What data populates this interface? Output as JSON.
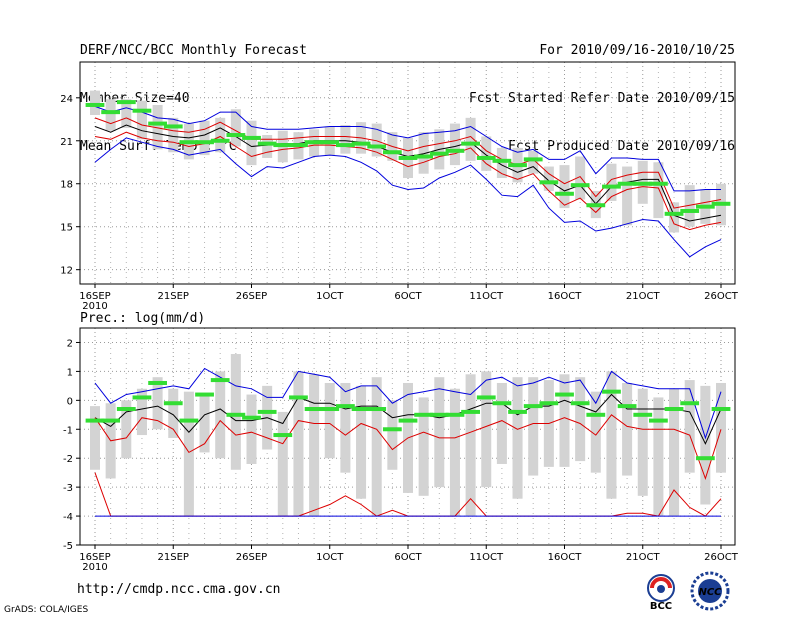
{
  "header": {
    "left": [
      "DERF/NCC/BCC Monthly Forecast",
      "Member Size=40",
      "Mean Surf. Temp.: °C"
    ],
    "right": [
      "For 2010/09/16-2010/10/25",
      "Fcst Started Refer Date 2010/09/15",
      "Fcst Produced Date 2010/09/16"
    ]
  },
  "precip_label": "Prec.: log(mm/d)",
  "footer": {
    "url": "http://cmdp.ncc.cma.gov.cn",
    "grads": "GrADS: COLA/IGES"
  },
  "logos": {
    "bcc": "BCC",
    "ncc": "NCC"
  },
  "colors": {
    "box": "#d3d3d3",
    "median": "#33dd33",
    "mean": "#000000",
    "spread": "#dd0000",
    "envelope": "#0000dd"
  },
  "chart_data": [
    {
      "type": "line",
      "title": "Mean Surf. Temp.: °C",
      "x_range": [
        0,
        40
      ],
      "ylim": [
        11,
        26.5
      ],
      "yticks": [
        12,
        15,
        18,
        21,
        24
      ],
      "xticks": [
        {
          "x": 0,
          "label": "16SEP",
          "sub": "2010"
        },
        {
          "x": 5,
          "label": "21SEP"
        },
        {
          "x": 10,
          "label": "26SEP"
        },
        {
          "x": 15,
          "label": "1OCT"
        },
        {
          "x": 20,
          "label": "6OCT"
        },
        {
          "x": 25,
          "label": "11OCT"
        },
        {
          "x": 30,
          "label": "16OCT"
        },
        {
          "x": 35,
          "label": "21OCT"
        },
        {
          "x": 40,
          "label": "26OCT"
        }
      ],
      "box_low": [
        22.8,
        21.7,
        21.9,
        21.1,
        20.4,
        20.2,
        19.7,
        20.0,
        20.2,
        20.6,
        19.3,
        19.8,
        19.5,
        19.7,
        19.9,
        20.0,
        20.1,
        20.1,
        19.9,
        19.6,
        18.4,
        18.7,
        19.0,
        19.3,
        19.6,
        18.9,
        18.4,
        18.1,
        18.7,
        17.5,
        16.3,
        16.9,
        15.6,
        16.8,
        15.1,
        16.6,
        15.6,
        14.6,
        15.0,
        15.2,
        15.1
      ],
      "box_high": [
        24.5,
        23.9,
        23.9,
        23.8,
        23.5,
        22.6,
        22.2,
        22.4,
        22.6,
        23.2,
        22.4,
        21.4,
        21.7,
        21.6,
        21.8,
        22.0,
        22.1,
        22.3,
        22.2,
        21.6,
        21.2,
        21.6,
        21.8,
        22.2,
        22.6,
        21.3,
        20.5,
        20.5,
        20.3,
        19.2,
        19.3,
        19.9,
        17.5,
        19.4,
        19.2,
        19.6,
        19.5,
        16.7,
        17.9,
        17.6,
        18.0
      ],
      "median": [
        23.5,
        23.0,
        23.7,
        23.1,
        22.2,
        22.0,
        20.9,
        20.9,
        21.0,
        21.4,
        21.2,
        20.8,
        20.7,
        20.7,
        20.9,
        20.9,
        20.7,
        20.8,
        20.6,
        20.2,
        19.8,
        19.9,
        20.1,
        20.3,
        20.8,
        19.8,
        19.6,
        19.3,
        19.7,
        18.1,
        17.3,
        17.9,
        16.5,
        17.8,
        18.0,
        18.0,
        18.0,
        15.9,
        16.1,
        16.4,
        16.6
      ],
      "series": [
        {
          "name": "envelope_high",
          "color": "#0000dd",
          "values": [
            23.4,
            23.0,
            23.3,
            23.0,
            22.6,
            22.5,
            22.2,
            22.4,
            23.0,
            23.0,
            22.0,
            21.8,
            21.8,
            21.8,
            21.9,
            22.0,
            22.0,
            22.0,
            21.8,
            21.4,
            21.2,
            21.5,
            21.6,
            21.7,
            22.0,
            21.3,
            20.6,
            20.2,
            20.4,
            19.7,
            19.7,
            20.3,
            18.7,
            19.8,
            19.8,
            19.7,
            19.7,
            17.5,
            17.5,
            17.6,
            17.6
          ]
        },
        {
          "name": "spread_high",
          "color": "#dd0000",
          "values": [
            22.6,
            22.2,
            22.6,
            22.1,
            21.9,
            21.7,
            21.6,
            21.8,
            22.3,
            21.7,
            21.1,
            21.1,
            21.1,
            21.2,
            21.3,
            21.3,
            21.3,
            21.2,
            21.0,
            20.6,
            20.3,
            20.6,
            20.8,
            21.0,
            21.3,
            20.3,
            19.7,
            19.3,
            19.7,
            18.7,
            18.0,
            18.5,
            17.1,
            18.3,
            18.6,
            18.8,
            18.8,
            16.3,
            16.5,
            16.7,
            16.9
          ]
        },
        {
          "name": "mean",
          "color": "#000000",
          "values": [
            22.0,
            21.6,
            22.1,
            21.7,
            21.5,
            21.3,
            21.2,
            21.4,
            21.9,
            21.3,
            20.6,
            20.7,
            20.8,
            20.8,
            21.0,
            21.0,
            21.0,
            20.9,
            20.6,
            20.2,
            19.9,
            20.1,
            20.4,
            20.6,
            20.9,
            20.0,
            19.3,
            18.8,
            19.2,
            18.2,
            17.5,
            17.9,
            16.6,
            17.8,
            18.1,
            18.3,
            18.3,
            15.8,
            15.4,
            15.6,
            15.8
          ]
        },
        {
          "name": "spread_low",
          "color": "#dd0000",
          "values": [
            21.3,
            21.1,
            21.6,
            21.2,
            21.0,
            20.9,
            20.6,
            20.8,
            21.3,
            20.6,
            19.9,
            20.2,
            20.4,
            20.5,
            20.7,
            20.7,
            20.6,
            20.5,
            20.2,
            19.7,
            19.2,
            19.5,
            19.9,
            20.1,
            20.5,
            19.4,
            18.7,
            18.3,
            18.7,
            17.5,
            16.5,
            17.0,
            16.0,
            17.1,
            17.6,
            17.8,
            17.7,
            15.2,
            14.8,
            15.1,
            15.3
          ]
        },
        {
          "name": "envelope_low",
          "color": "#0000dd",
          "values": [
            19.5,
            20.4,
            21.2,
            20.9,
            20.6,
            20.4,
            20.0,
            20.2,
            20.4,
            19.4,
            18.5,
            19.2,
            19.1,
            19.5,
            19.9,
            20.0,
            19.9,
            19.5,
            18.9,
            17.9,
            17.6,
            17.7,
            18.4,
            18.8,
            19.3,
            18.3,
            17.2,
            17.1,
            17.9,
            16.3,
            15.3,
            15.4,
            14.7,
            14.9,
            15.2,
            15.5,
            15.4,
            14.1,
            12.9,
            13.6,
            14.1
          ]
        }
      ]
    },
    {
      "type": "line",
      "title": "Prec.: log(mm/d)",
      "x_range": [
        0,
        40
      ],
      "ylim": [
        -5,
        2.5
      ],
      "yticks": [
        -5,
        -4,
        -3,
        -2,
        -1,
        0,
        1,
        2
      ],
      "xticks": [
        {
          "x": 0,
          "label": "16SEP",
          "sub": "2010"
        },
        {
          "x": 5,
          "label": "21SEP"
        },
        {
          "x": 10,
          "label": "26SEP"
        },
        {
          "x": 15,
          "label": "1OCT"
        },
        {
          "x": 20,
          "label": "6OCT"
        },
        {
          "x": 25,
          "label": "11OCT"
        },
        {
          "x": 30,
          "label": "16OCT"
        },
        {
          "x": 35,
          "label": "21OCT"
        },
        {
          "x": 40,
          "label": "26OCT"
        }
      ],
      "box_low": [
        -2.4,
        -2.7,
        -2.0,
        -1.2,
        -1.0,
        -1.3,
        -4.0,
        -1.8,
        -2.0,
        -2.4,
        -2.2,
        -1.7,
        -4.0,
        -4.0,
        -4.0,
        -2.0,
        -2.5,
        -3.4,
        -4.0,
        -2.4,
        -3.2,
        -3.3,
        -3.0,
        -4.0,
        -4.0,
        -3.0,
        -2.2,
        -3.4,
        -2.6,
        -2.3,
        -2.3,
        -2.1,
        -2.5,
        -3.4,
        -2.6,
        -3.3,
        -4.0,
        -4.0,
        -2.5,
        -3.6,
        -2.5
      ],
      "box_high": [
        -0.2,
        -0.1,
        0.0,
        0.4,
        0.8,
        0.4,
        0.3,
        0.2,
        1.0,
        1.6,
        0.2,
        0.5,
        -0.4,
        1.0,
        0.9,
        0.6,
        0.6,
        0.5,
        0.8,
        0.0,
        0.6,
        0.1,
        0.8,
        0.4,
        0.9,
        1.0,
        0.6,
        0.8,
        0.8,
        0.7,
        0.9,
        0.8,
        0.3,
        1.0,
        0.6,
        0.4,
        0.1,
        0.4,
        0.7,
        0.5,
        0.6
      ],
      "median": [
        -0.7,
        -0.7,
        -0.3,
        0.1,
        0.6,
        -0.1,
        -0.7,
        0.2,
        0.7,
        -0.5,
        -0.6,
        -0.4,
        -1.2,
        0.1,
        -0.3,
        -0.3,
        -0.2,
        -0.3,
        -0.3,
        -1.0,
        -0.7,
        -0.5,
        -0.5,
        -0.5,
        -0.4,
        0.1,
        -0.1,
        -0.4,
        -0.2,
        -0.1,
        0.2,
        -0.1,
        -0.5,
        0.3,
        -0.2,
        -0.5,
        -0.7,
        -0.3,
        -0.1,
        -2.0,
        -0.3
      ],
      "series": [
        {
          "name": "envelope_high",
          "color": "#0000dd",
          "values": [
            0.6,
            -0.1,
            0.2,
            0.3,
            0.4,
            0.5,
            0.4,
            1.1,
            0.8,
            0.5,
            0.4,
            0.1,
            0.1,
            1.0,
            0.9,
            0.8,
            0.3,
            0.5,
            0.5,
            -0.1,
            0.2,
            0.3,
            0.4,
            0.3,
            0.2,
            0.7,
            0.8,
            0.5,
            0.6,
            0.8,
            0.6,
            0.7,
            -0.1,
            1.0,
            0.6,
            0.5,
            0.4,
            0.4,
            0.4,
            -1.3,
            0.3
          ]
        },
        {
          "name": "mean",
          "color": "#000000",
          "values": [
            -0.6,
            -0.9,
            -0.4,
            -0.3,
            -0.2,
            -0.5,
            -1.1,
            -0.5,
            -0.3,
            -0.7,
            -0.7,
            -0.6,
            -0.8,
            0.1,
            -0.1,
            -0.1,
            -0.3,
            -0.2,
            -0.2,
            -0.6,
            -0.5,
            -0.5,
            -0.6,
            -0.5,
            -0.3,
            -0.1,
            -0.1,
            -0.5,
            -0.2,
            -0.2,
            0.0,
            -0.2,
            -0.4,
            0.2,
            -0.3,
            -0.3,
            -0.3,
            -0.3,
            -0.4,
            -1.5,
            -0.3
          ]
        },
        {
          "name": "spread_high",
          "color": "#dd0000",
          "values": [
            -0.6,
            -1.4,
            -1.3,
            -0.6,
            -0.7,
            -1.0,
            -1.8,
            -1.5,
            -0.7,
            -1.2,
            -1.1,
            -1.3,
            -1.5,
            -0.7,
            -0.8,
            -0.8,
            -1.2,
            -0.8,
            -1.0,
            -1.7,
            -1.3,
            -1.1,
            -1.3,
            -1.3,
            -1.1,
            -0.9,
            -0.7,
            -1.0,
            -0.8,
            -0.8,
            -0.6,
            -0.8,
            -1.2,
            -0.5,
            -0.9,
            -1.0,
            -1.0,
            -1.0,
            -1.2,
            -2.7,
            -1.0
          ]
        },
        {
          "name": "spread_low",
          "color": "#dd0000",
          "values": [
            -2.5,
            -4.0,
            -4.0,
            -4.0,
            -4.0,
            -4.0,
            -4.0,
            -4.0,
            -4.0,
            -4.0,
            -4.0,
            -4.0,
            -4.0,
            -4.0,
            -3.8,
            -3.6,
            -3.3,
            -3.6,
            -4.0,
            -3.8,
            -4.0,
            -4.0,
            -4.0,
            -4.0,
            -3.4,
            -4.0,
            -4.0,
            -4.0,
            -4.0,
            -4.0,
            -4.0,
            -4.0,
            -4.0,
            -4.0,
            -3.9,
            -3.9,
            -4.0,
            -3.1,
            -3.7,
            -4.0,
            -3.4
          ]
        },
        {
          "name": "envelope_low",
          "color": "#0000dd",
          "values": [
            -4.0,
            -4.0,
            -4.0,
            -4.0,
            -4.0,
            -4.0,
            -4.0,
            -4.0,
            -4.0,
            -4.0,
            -4.0,
            -4.0,
            -4.0,
            -4.0,
            -4.0,
            -4.0,
            -4.0,
            -4.0,
            -4.0,
            -4.0,
            -4.0,
            -4.0,
            -4.0,
            -4.0,
            -4.0,
            -4.0,
            -4.0,
            -4.0,
            -4.0,
            -4.0,
            -4.0,
            -4.0,
            -4.0,
            -4.0,
            -4.0,
            -4.0,
            -4.0,
            -4.0,
            -4.0,
            -4.0,
            -4.0
          ]
        }
      ]
    }
  ]
}
